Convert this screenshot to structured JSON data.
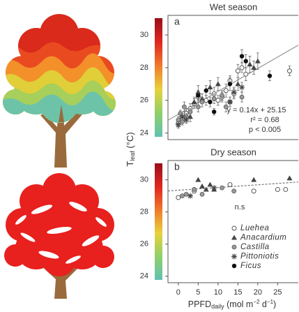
{
  "chart_data": [
    {
      "type": "scatter",
      "title": "Wet season",
      "label": "a",
      "ylabel": {
        "main": "T",
        "sub": "leaf",
        "unit": " (°C)"
      },
      "xlim": [
        -2.6,
        30.2
      ],
      "ylim": [
        23.6,
        31.2
      ],
      "yticks": [
        24,
        26,
        28,
        30
      ],
      "colorbar": [
        "#9b0e1a",
        "#e0261f",
        "#f07a2a",
        "#e8d23a",
        "#8fcf6a",
        "#62c2b0"
      ],
      "fit": {
        "slope": 0.14,
        "intercept": 25.15,
        "style": "solid"
      },
      "annotations": [
        "y = 0.14x + 25.15",
        "r² = 0.68",
        "p < 0.005"
      ],
      "series": [
        {
          "name": "Luehea",
          "marker": "open-circle",
          "color": "#555555",
          "x": [
            0,
            1,
            2,
            3,
            4,
            5,
            7,
            9,
            12,
            13,
            15,
            16,
            17,
            28,
            10,
            11,
            14
          ],
          "values": [
            24.6,
            24.9,
            25.2,
            25.5,
            25.8,
            26.2,
            26.0,
            26.4,
            26.6,
            27.2,
            27.8,
            28.0,
            27.6,
            27.8,
            26.0,
            26.2,
            26.4
          ],
          "errors": [
            0.2,
            0.2,
            0.3,
            0.3,
            0.3,
            0.3,
            0.3,
            0.4,
            0.4,
            0.3,
            0.4,
            0.3,
            0.4,
            0.3,
            0.3,
            0.3,
            0.3
          ]
        },
        {
          "name": "Anacardium",
          "marker": "triangle",
          "color": "#444444",
          "x": [
            3,
            4,
            5,
            6,
            8,
            10,
            15,
            18,
            19,
            20
          ],
          "values": [
            25.0,
            25.9,
            26.5,
            26.1,
            26.8,
            27.0,
            27.0,
            28.2,
            28.0,
            28.4
          ],
          "errors": [
            0.3,
            0.3,
            0.4,
            0.3,
            0.4,
            0.4,
            0.4,
            0.5,
            0.4,
            0.5
          ]
        },
        {
          "name": "Castilla",
          "marker": "gray-circle",
          "color": "#999999",
          "x": [
            0,
            0.5,
            1,
            2,
            1.5,
            3,
            5,
            9,
            11,
            12,
            13,
            16,
            6
          ],
          "values": [
            24.8,
            25.2,
            24.7,
            25.0,
            25.6,
            25.3,
            25.6,
            26.1,
            26.3,
            25.6,
            25.9,
            26.2,
            25.9
          ],
          "errors": [
            0.2,
            0.2,
            0.2,
            0.2,
            0.3,
            0.2,
            0.3,
            0.3,
            0.3,
            0.3,
            0.3,
            0.3,
            0.3
          ]
        },
        {
          "name": "Pittoniotis",
          "marker": "asterisk",
          "color": "#444444",
          "x": [
            0,
            1,
            2,
            13,
            14,
            16
          ],
          "values": [
            24.5,
            25.0,
            24.8,
            25.9,
            26.5,
            26.8
          ],
          "errors": [
            0.2,
            0.2,
            0.2,
            0.3,
            0.3,
            0.3
          ]
        },
        {
          "name": "Ficus",
          "marker": "filled-circle",
          "color": "#111111",
          "x": [
            5,
            7,
            9,
            13,
            16,
            17,
            23,
            8
          ],
          "values": [
            26.3,
            26.6,
            25.3,
            27.0,
            28.7,
            28.4,
            27.5,
            25.9
          ],
          "errors": [
            0.3,
            0.3,
            0.2,
            0.4,
            0.4,
            0.4,
            0.3,
            0.3
          ]
        }
      ]
    },
    {
      "type": "scatter",
      "title": "Dry season",
      "label": "b",
      "xlabel": {
        "main": "PPFD",
        "sub": "daily",
        "unit1": " (mol m",
        "exp1": "−2",
        "unit2": " d",
        "exp2": "−1",
        "unit3": ")"
      },
      "xlim": [
        -2.6,
        30.2
      ],
      "ylim": [
        23.6,
        31.2
      ],
      "xticks": [
        0,
        5,
        10,
        15,
        20,
        25
      ],
      "yticks": [
        24,
        26,
        28,
        30
      ],
      "colorbar": [
        "#9b0e1a",
        "#e0261f",
        "#f07a2a",
        "#e8d23a",
        "#8fcf6a",
        "#62c2b0"
      ],
      "fit": {
        "slope": 0.017,
        "intercept": 29.35,
        "style": "dashed"
      },
      "annotations": [
        "n.s"
      ],
      "legend": true,
      "series": [
        {
          "name": "Luehea",
          "marker": "open-circle",
          "color": "#555555",
          "x": [
            0,
            4,
            13,
            19,
            25,
            27
          ],
          "values": [
            28.9,
            29.3,
            29.7,
            29.3,
            29.4,
            29.4
          ]
        },
        {
          "name": "Anacardium",
          "marker": "triangle",
          "color": "#444444",
          "x": [
            5,
            6,
            7,
            8,
            9,
            19,
            28
          ],
          "values": [
            30.0,
            29.6,
            29.4,
            29.7,
            29.4,
            30.0,
            30.1
          ]
        },
        {
          "name": "Castilla",
          "marker": "gray-circle",
          "color": "#999999",
          "x": [
            1,
            2,
            4,
            6,
            11,
            14
          ],
          "values": [
            29.0,
            29.1,
            29.4,
            29.1,
            29.5,
            29.3
          ]
        },
        {
          "name": "Pittoniotis",
          "marker": "asterisk",
          "color": "#444444",
          "x": [
            3,
            9
          ],
          "values": [
            29.0,
            29.5
          ]
        },
        {
          "name": "Ficus",
          "marker": "filled-circle",
          "color": "#111111",
          "x": [],
          "values": []
        }
      ]
    }
  ]
}
